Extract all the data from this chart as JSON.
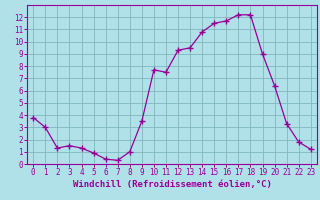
{
  "x": [
    0,
    1,
    2,
    3,
    4,
    5,
    6,
    7,
    8,
    9,
    10,
    11,
    12,
    13,
    14,
    15,
    16,
    17,
    18,
    19,
    20,
    21,
    22,
    23
  ],
  "y": [
    3.8,
    3.0,
    1.3,
    1.5,
    1.3,
    0.9,
    0.4,
    0.3,
    1.0,
    3.5,
    7.7,
    7.5,
    9.3,
    9.5,
    10.8,
    11.5,
    11.7,
    12.2,
    12.2,
    9.0,
    6.4,
    3.3,
    1.8,
    1.2
  ],
  "line_color": "#990099",
  "marker": "+",
  "marker_size": 4,
  "bg_color": "#b0e0e8",
  "grid_color": "#80b8c0",
  "xlabel": "Windchill (Refroidissement éolien,°C)",
  "xlabel_color": "#990099",
  "tick_color": "#990099",
  "spine_color": "#990099",
  "ylim": [
    0,
    13
  ],
  "xlim": [
    -0.5,
    23.5
  ],
  "yticks": [
    0,
    1,
    2,
    3,
    4,
    5,
    6,
    7,
    8,
    9,
    10,
    11,
    12
  ],
  "xticks": [
    0,
    1,
    2,
    3,
    4,
    5,
    6,
    7,
    8,
    9,
    10,
    11,
    12,
    13,
    14,
    15,
    16,
    17,
    18,
    19,
    20,
    21,
    22,
    23
  ],
  "tick_fontsize": 5.5,
  "xlabel_fontsize": 6.5
}
